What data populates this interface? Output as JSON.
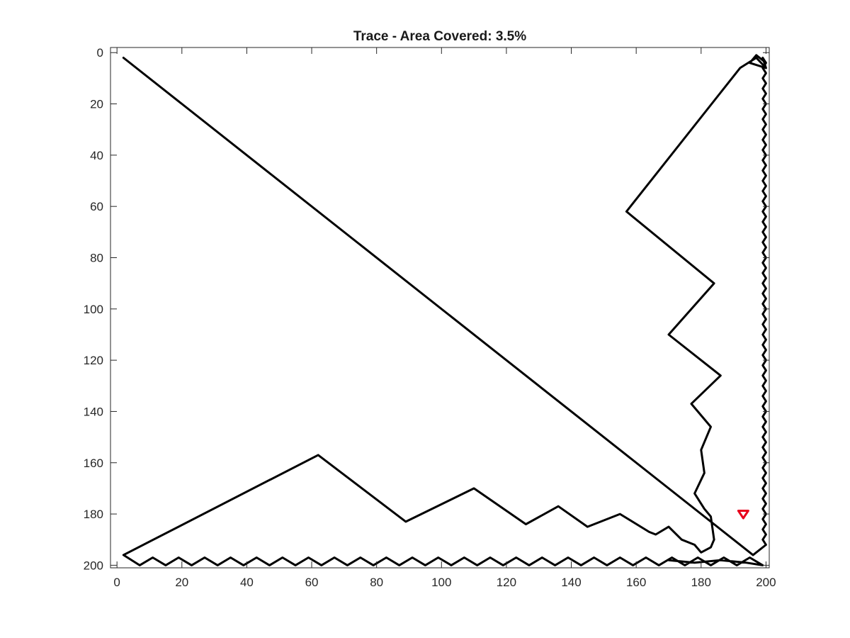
{
  "chart_data": {
    "type": "line",
    "title": "Trace - Area Covered: 3.5%",
    "xlabel": "",
    "ylabel": "",
    "xlim": [
      -2,
      201
    ],
    "ylim": [
      -2,
      201
    ],
    "y_reversed": true,
    "grid": false,
    "x_ticks": [
      0,
      20,
      40,
      60,
      80,
      100,
      120,
      140,
      160,
      180,
      200
    ],
    "y_ticks": [
      0,
      20,
      40,
      60,
      80,
      100,
      120,
      140,
      160,
      180,
      200
    ],
    "series": [
      {
        "color": "#000000",
        "x": [
          2,
          196,
          200,
          199,
          200,
          199,
          200,
          199,
          200,
          199,
          200,
          199,
          200,
          199,
          200,
          199,
          200,
          199,
          200,
          199,
          200,
          199,
          200,
          199,
          200,
          199,
          200,
          199,
          200,
          199,
          200,
          199,
          200,
          199,
          200,
          199,
          200,
          199,
          200,
          199,
          200,
          199,
          200,
          199,
          200,
          199,
          200,
          199,
          200,
          199,
          200,
          199,
          200,
          199,
          200,
          199,
          200,
          199,
          200,
          199,
          200,
          199,
          200,
          199,
          200,
          199,
          200,
          199,
          200,
          199,
          200,
          199,
          200,
          199,
          200,
          199,
          200,
          199,
          200,
          199,
          200,
          199,
          200,
          199,
          200,
          199,
          200,
          199,
          200,
          199,
          200,
          199,
          200,
          199,
          200,
          199,
          200,
          199,
          200,
          199,
          200,
          199,
          200,
          199,
          200,
          199,
          200,
          199,
          200,
          199,
          200,
          199,
          200,
          199,
          200,
          199,
          200,
          199,
          200,
          199,
          200,
          199,
          200,
          199,
          200,
          199,
          200,
          199,
          200,
          199,
          200,
          199,
          200,
          197,
          195,
          200,
          197,
          192,
          157,
          184,
          170,
          186,
          177,
          183,
          180,
          181,
          178,
          181,
          183,
          184
        ],
        "y": [
          2,
          196,
          192,
          190,
          188,
          186,
          184,
          182,
          180,
          178,
          176,
          174,
          172,
          170,
          168,
          166,
          164,
          162,
          160,
          158,
          156,
          154,
          152,
          150,
          148,
          146,
          144,
          142,
          140,
          138,
          136,
          134,
          132,
          130,
          128,
          126,
          124,
          122,
          120,
          118,
          116,
          114,
          112,
          110,
          108,
          106,
          104,
          102,
          100,
          98,
          96,
          94,
          92,
          90,
          88,
          86,
          84,
          82,
          80,
          78,
          76,
          74,
          72,
          70,
          68,
          66,
          64,
          62,
          60,
          58,
          56,
          54,
          52,
          50,
          48,
          46,
          44,
          42,
          40,
          38,
          36,
          34,
          32,
          30,
          28,
          26,
          24,
          22,
          20,
          18,
          16,
          14,
          12,
          10,
          8,
          6,
          4,
          2,
          6,
          2,
          4,
          2,
          6,
          2,
          4,
          2,
          6,
          2,
          4,
          2,
          6,
          2,
          4,
          2,
          6,
          2,
          4,
          2,
          6,
          2,
          4,
          2,
          6,
          2,
          4,
          2,
          6,
          2,
          4,
          2,
          6,
          2,
          4,
          1,
          4,
          6,
          2,
          6,
          62,
          90,
          110,
          126,
          137,
          146,
          155,
          164,
          172,
          178,
          181,
          190
        ]
      },
      {
        "color": "#000000",
        "x": [
          184,
          183,
          180,
          178,
          174,
          170,
          166,
          164,
          155,
          145,
          136,
          126,
          110,
          89,
          62,
          2,
          7,
          11,
          15,
          19,
          23,
          27,
          31,
          35,
          39,
          43,
          47,
          51,
          55,
          59,
          63,
          67,
          71,
          75,
          79,
          83,
          87,
          91,
          95,
          99,
          103,
          107,
          111,
          115,
          119,
          123,
          127,
          131,
          135,
          139,
          143,
          147,
          151,
          155,
          159,
          163,
          167,
          171,
          175,
          179,
          183,
          187,
          191,
          195,
          199,
          194,
          186,
          178,
          170
        ],
        "y": [
          190,
          193,
          195,
          192,
          190,
          185,
          188,
          187,
          180,
          185,
          177,
          184,
          170,
          183,
          157,
          196,
          200,
          197,
          200,
          197,
          200,
          197,
          200,
          197,
          200,
          197,
          200,
          197,
          200,
          197,
          200,
          197,
          200,
          197,
          200,
          197,
          200,
          197,
          200,
          197,
          200,
          197,
          200,
          197,
          200,
          197,
          200,
          197,
          200,
          197,
          200,
          197,
          200,
          197,
          200,
          197,
          200,
          197,
          200,
          197,
          200,
          197,
          200,
          197,
          200,
          199,
          198,
          199,
          198
        ]
      }
    ],
    "marker": {
      "x": 193,
      "y": 180,
      "shape": "triangle-down",
      "color": "#e8001c"
    }
  }
}
